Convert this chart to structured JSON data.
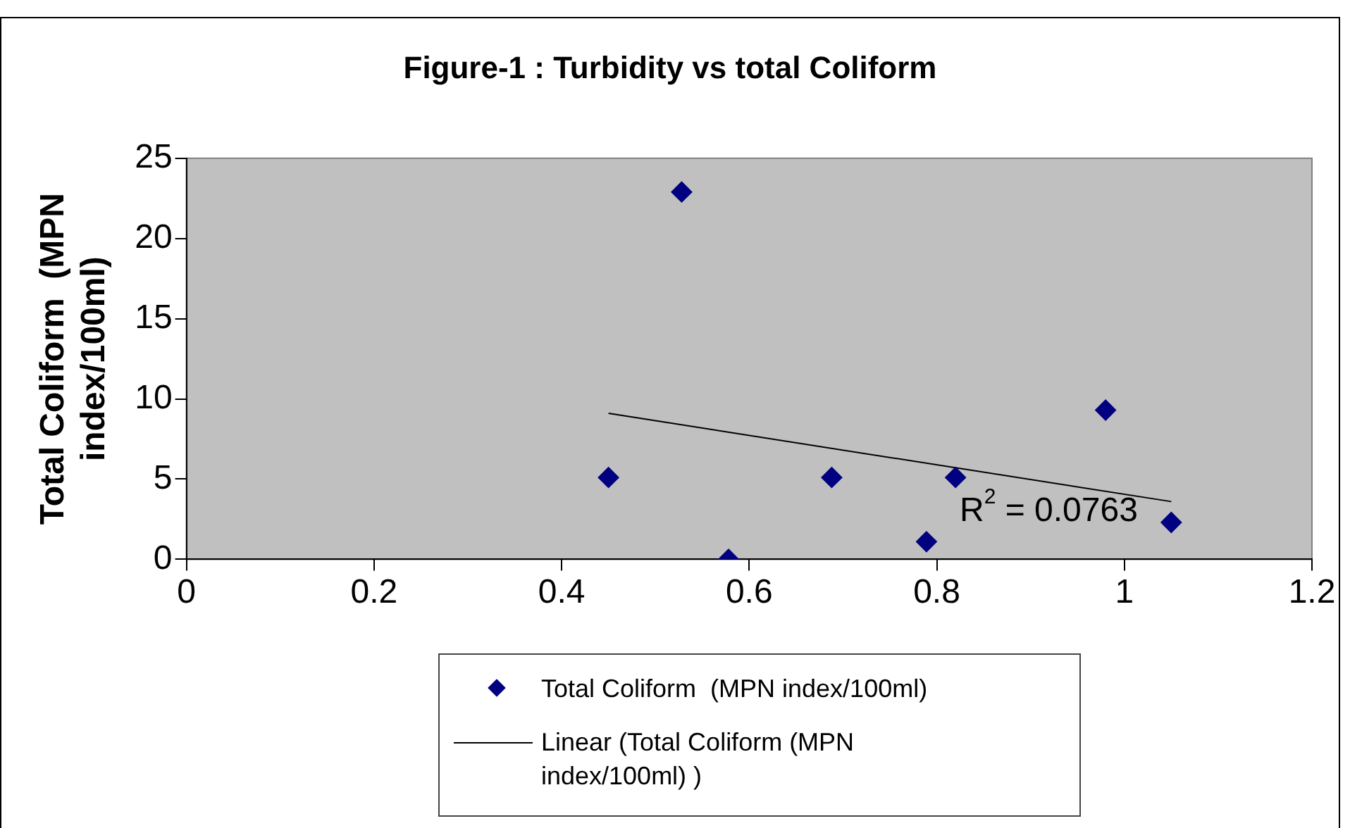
{
  "chart_data": {
    "type": "scatter",
    "title": "Figure-1 : Turbidity vs total Coliform",
    "ylabel": "Total Coliform  (MPN index/100ml)",
    "xlim": [
      0,
      1.2
    ],
    "xticks": [
      0,
      0.2,
      0.4,
      0.6,
      0.8,
      1,
      1.2
    ],
    "ylim": [
      0,
      25
    ],
    "yticks": [
      0,
      5,
      10,
      15,
      20,
      25
    ],
    "grid": false,
    "legend": "bottom",
    "marker": "diamond",
    "series": [
      {
        "name": "Total Coliform  (MPN index/100ml)",
        "color": "#000080",
        "x": [
          0.45,
          0.528,
          0.578,
          0.688,
          0.789,
          0.82,
          0.98,
          1.05
        ],
        "values": [
          5.1,
          22.9,
          0,
          5.1,
          1.1,
          5.1,
          9.3,
          2.3
        ]
      },
      {
        "name": "Linear (Total Coliform (MPN index/100ml) )",
        "type": "line",
        "color": "#000000",
        "marker": "none",
        "x": [
          0.45,
          1.05
        ],
        "values": [
          9.1,
          3.6
        ]
      }
    ],
    "annotations": [
      "R$^{2}$ = 0.0763"
    ]
  }
}
